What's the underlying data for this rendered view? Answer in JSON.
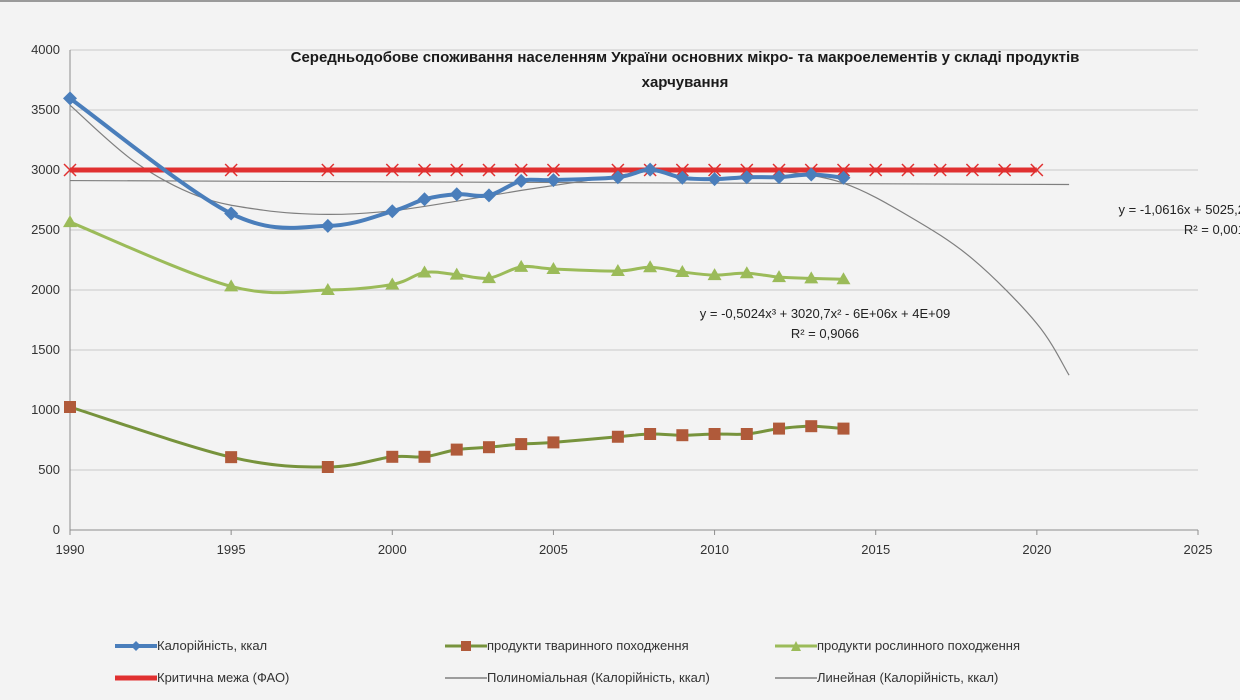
{
  "chart_data": {
    "type": "line",
    "title_line1": "Середньодобове споживання населенням України основних мікро- та макроелементів у складі продуктів",
    "title_line2": "харчування",
    "xlim": [
      1990,
      2025
    ],
    "ylim": [
      0,
      4000
    ],
    "x_ticks": [
      1990,
      1995,
      2000,
      2005,
      2010,
      2015,
      2020,
      2025
    ],
    "y_ticks": [
      0,
      500,
      1000,
      1500,
      2000,
      2500,
      3000,
      3500,
      4000
    ],
    "grid": "horizontal",
    "legend_position": "bottom",
    "series": [
      {
        "name": "Калорійність, ккал",
        "color": "#4a7ebb",
        "marker": "diamond",
        "x": [
          1990,
          1995,
          1998,
          2000,
          2001,
          2002,
          2003,
          2004,
          2005,
          2007,
          2008,
          2009,
          2010,
          2011,
          2012,
          2013,
          2014
        ],
        "y": [
          3597,
          2637,
          2534,
          2656,
          2756,
          2798,
          2789,
          2909,
          2916,
          2940,
          3003,
          2935,
          2924,
          2940,
          2941,
          2962,
          2935
        ]
      },
      {
        "name": "продукти тваринного походження",
        "color": "#77933c",
        "marker_color": "#b05a3a",
        "marker": "square",
        "x": [
          1990,
          1995,
          1998,
          2000,
          2001,
          2002,
          2003,
          2004,
          2005,
          2007,
          2008,
          2009,
          2010,
          2011,
          2012,
          2013,
          2014
        ],
        "y": [
          1025,
          607,
          525,
          610,
          610,
          670,
          690,
          716,
          730,
          777,
          800,
          790,
          800,
          800,
          845,
          865,
          845
        ]
      },
      {
        "name": "продукти рослинного походження",
        "color": "#9bbb59",
        "marker": "triangle",
        "x": [
          1990,
          1995,
          1998,
          2000,
          2001,
          2002,
          2003,
          2004,
          2005,
          2007,
          2008,
          2009,
          2010,
          2011,
          2012,
          2013,
          2014
        ],
        "y": [
          2566,
          2030,
          2000,
          2046,
          2146,
          2128,
          2099,
          2193,
          2175,
          2158,
          2190,
          2150,
          2124,
          2140,
          2107,
          2097,
          2090
        ]
      },
      {
        "name": "Критична межа (ФАО)",
        "color": "#e03030",
        "marker": "x",
        "x": [
          1990,
          1995,
          1998,
          2000,
          2001,
          2002,
          2003,
          2004,
          2005,
          2007,
          2008,
          2009,
          2010,
          2011,
          2012,
          2013,
          2014,
          2015,
          2016,
          2017,
          2018,
          2019,
          2020
        ],
        "y": [
          3000,
          3000,
          3000,
          3000,
          3000,
          3000,
          3000,
          3000,
          3000,
          3000,
          3000,
          3000,
          3000,
          3000,
          3000,
          3000,
          3000,
          3000,
          3000,
          3000,
          3000,
          3000,
          3000
        ]
      },
      {
        "name": "Полиноміальная (Калорійність, ккал)",
        "color": "#7f7f7f",
        "x": [
          1990,
          1992,
          1994,
          1996,
          1998,
          2000,
          2002,
          2004,
          2006,
          2008,
          2010,
          2012,
          2014,
          2016,
          2018,
          2020,
          2021
        ],
        "y": [
          3540,
          3070,
          2780,
          2665,
          2630,
          2660,
          2740,
          2830,
          2910,
          2990,
          3010,
          2990,
          2890,
          2620,
          2260,
          1720,
          1290
        ]
      },
      {
        "name": "Линейная (Калорійність, ккал)",
        "color": "#7f7f7f",
        "x": [
          1990,
          2021
        ],
        "y": [
          2912,
          2879
        ]
      }
    ],
    "annotations": [
      {
        "line1": "y = -1,0616x + 5025,2",
        "line2": "R² = 0,001"
      },
      {
        "line1": "y = -0,5024x³ + 3020,7x² - 6E+06x + 4E+09",
        "line2": "R² = 0,9066"
      }
    ]
  }
}
